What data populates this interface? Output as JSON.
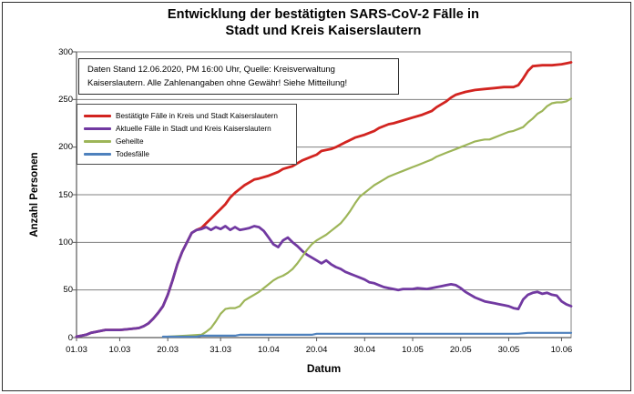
{
  "title": {
    "line1": "Entwicklung der bestätigten SARS-CoV-2 Fälle in",
    "line2": "Stadt und Kreis Kaiserslautern"
  },
  "annotation": {
    "line1": "Daten Stand 12.06.2020, PM 16:00 Uhr, Quelle: Kreisverwaltung",
    "line2": "Kaiserslautern. Alle Zahlenangaben ohne Gewähr! Siehe Mitteilung!"
  },
  "chart_data": {
    "type": "line",
    "title": "Entwicklung der bestätigten SARS-CoV-2 Fälle in Stadt und Kreis Kaiserslautern",
    "xlabel": "Datum",
    "ylabel": "Anzahl Personen",
    "ylim": [
      0,
      300
    ],
    "y_ticks": [
      0,
      50,
      100,
      150,
      200,
      250,
      300
    ],
    "x_range_days": [
      0,
      103
    ],
    "x_ticks": [
      {
        "label": "01.03",
        "day": 0
      },
      {
        "label": "10.03",
        "day": 9
      },
      {
        "label": "20.03",
        "day": 19
      },
      {
        "label": "31.03",
        "day": 30
      },
      {
        "label": "10.04",
        "day": 40
      },
      {
        "label": "20.04",
        "day": 50
      },
      {
        "label": "30.04",
        "day": 60
      },
      {
        "label": "10.05",
        "day": 70
      },
      {
        "label": "20.05",
        "day": 80
      },
      {
        "label": "30.05",
        "day": 90
      },
      {
        "label": "10.06",
        "day": 101
      }
    ],
    "grid": "horizontal",
    "legend_position": "top-left",
    "colors": {
      "grid": "#808080",
      "axis": "#595959"
    },
    "series": [
      {
        "name": "Bestätigte Fälle in Kreis und Stadt Kaiserslautern",
        "color": "#D22420",
        "width": 2.8,
        "points": [
          [
            0,
            1
          ],
          [
            2,
            3
          ],
          [
            3,
            5
          ],
          [
            4,
            6
          ],
          [
            6,
            8
          ],
          [
            9,
            8
          ],
          [
            11,
            9
          ],
          [
            13,
            10
          ],
          [
            14,
            12
          ],
          [
            15,
            15
          ],
          [
            16,
            20
          ],
          [
            17,
            26
          ],
          [
            18,
            33
          ],
          [
            19,
            45
          ],
          [
            20,
            60
          ],
          [
            21,
            77
          ],
          [
            22,
            90
          ],
          [
            23,
            100
          ],
          [
            24,
            110
          ],
          [
            25,
            113
          ],
          [
            26,
            115
          ],
          [
            27,
            120
          ],
          [
            28,
            125
          ],
          [
            29,
            130
          ],
          [
            30,
            135
          ],
          [
            31,
            140
          ],
          [
            32,
            147
          ],
          [
            33,
            152
          ],
          [
            34,
            156
          ],
          [
            35,
            160
          ],
          [
            36,
            163
          ],
          [
            37,
            166
          ],
          [
            38,
            167
          ],
          [
            40,
            170
          ],
          [
            42,
            174
          ],
          [
            43,
            177
          ],
          [
            45,
            180
          ],
          [
            47,
            186
          ],
          [
            49,
            190
          ],
          [
            50,
            192
          ],
          [
            51,
            196
          ],
          [
            53,
            198
          ],
          [
            54,
            200
          ],
          [
            56,
            205
          ],
          [
            58,
            210
          ],
          [
            60,
            213
          ],
          [
            62,
            217
          ],
          [
            63,
            220
          ],
          [
            65,
            224
          ],
          [
            66,
            225
          ],
          [
            68,
            228
          ],
          [
            70,
            231
          ],
          [
            72,
            234
          ],
          [
            74,
            238
          ],
          [
            75,
            242
          ],
          [
            77,
            248
          ],
          [
            78,
            252
          ],
          [
            79,
            255
          ],
          [
            81,
            258
          ],
          [
            83,
            260
          ],
          [
            85,
            261
          ],
          [
            87,
            262
          ],
          [
            89,
            263
          ],
          [
            91,
            263
          ],
          [
            92,
            265
          ],
          [
            93,
            272
          ],
          [
            94,
            280
          ],
          [
            95,
            285
          ],
          [
            97,
            286
          ],
          [
            99,
            286
          ],
          [
            101,
            287
          ],
          [
            102,
            288
          ],
          [
            103,
            289
          ]
        ]
      },
      {
        "name": "Aktuelle Fälle in Stadt und Kreis Kaiserslautern",
        "color": "#7139A1",
        "width": 2.8,
        "points": [
          [
            0,
            1
          ],
          [
            2,
            3
          ],
          [
            3,
            5
          ],
          [
            4,
            6
          ],
          [
            6,
            8
          ],
          [
            9,
            8
          ],
          [
            11,
            9
          ],
          [
            13,
            10
          ],
          [
            14,
            12
          ],
          [
            15,
            15
          ],
          [
            16,
            20
          ],
          [
            17,
            26
          ],
          [
            18,
            33
          ],
          [
            19,
            45
          ],
          [
            20,
            60
          ],
          [
            21,
            77
          ],
          [
            22,
            90
          ],
          [
            23,
            100
          ],
          [
            24,
            110
          ],
          [
            25,
            113
          ],
          [
            26,
            114
          ],
          [
            27,
            116
          ],
          [
            28,
            113
          ],
          [
            29,
            116
          ],
          [
            30,
            114
          ],
          [
            31,
            117
          ],
          [
            32,
            113
          ],
          [
            33,
            116
          ],
          [
            34,
            113
          ],
          [
            35,
            114
          ],
          [
            36,
            115
          ],
          [
            37,
            117
          ],
          [
            38,
            116
          ],
          [
            39,
            112
          ],
          [
            40,
            105
          ],
          [
            41,
            98
          ],
          [
            42,
            95
          ],
          [
            43,
            102
          ],
          [
            44,
            105
          ],
          [
            45,
            100
          ],
          [
            46,
            96
          ],
          [
            47,
            91
          ],
          [
            48,
            87
          ],
          [
            49,
            84
          ],
          [
            50,
            81
          ],
          [
            51,
            78
          ],
          [
            52,
            81
          ],
          [
            53,
            77
          ],
          [
            54,
            74
          ],
          [
            55,
            72
          ],
          [
            56,
            69
          ],
          [
            57,
            67
          ],
          [
            58,
            65
          ],
          [
            59,
            63
          ],
          [
            60,
            61
          ],
          [
            61,
            58
          ],
          [
            62,
            57
          ],
          [
            63,
            55
          ],
          [
            64,
            53
          ],
          [
            65,
            52
          ],
          [
            66,
            51
          ],
          [
            67,
            50
          ],
          [
            68,
            51
          ],
          [
            70,
            51
          ],
          [
            71,
            52
          ],
          [
            73,
            51
          ],
          [
            75,
            53
          ],
          [
            76,
            54
          ],
          [
            77,
            55
          ],
          [
            78,
            56
          ],
          [
            79,
            55
          ],
          [
            80,
            52
          ],
          [
            81,
            48
          ],
          [
            82,
            45
          ],
          [
            83,
            42
          ],
          [
            84,
            40
          ],
          [
            85,
            38
          ],
          [
            86,
            37
          ],
          [
            87,
            36
          ],
          [
            88,
            35
          ],
          [
            89,
            34
          ],
          [
            90,
            33
          ],
          [
            91,
            31
          ],
          [
            92,
            30
          ],
          [
            93,
            40
          ],
          [
            94,
            45
          ],
          [
            95,
            47
          ],
          [
            96,
            48
          ],
          [
            97,
            46
          ],
          [
            98,
            47
          ],
          [
            99,
            45
          ],
          [
            100,
            44
          ],
          [
            101,
            38
          ],
          [
            102,
            35
          ],
          [
            103,
            33
          ]
        ]
      },
      {
        "name": "Geheilte",
        "color": "#9DB558",
        "width": 2.2,
        "points": [
          [
            19,
            1
          ],
          [
            23,
            2
          ],
          [
            26,
            3
          ],
          [
            27,
            6
          ],
          [
            28,
            10
          ],
          [
            29,
            17
          ],
          [
            30,
            25
          ],
          [
            31,
            30
          ],
          [
            32,
            31
          ],
          [
            33,
            31
          ],
          [
            34,
            33
          ],
          [
            35,
            39
          ],
          [
            36,
            42
          ],
          [
            37,
            45
          ],
          [
            38,
            48
          ],
          [
            39,
            52
          ],
          [
            40,
            56
          ],
          [
            41,
            60
          ],
          [
            42,
            63
          ],
          [
            43,
            65
          ],
          [
            44,
            68
          ],
          [
            45,
            72
          ],
          [
            46,
            78
          ],
          [
            47,
            85
          ],
          [
            48,
            92
          ],
          [
            49,
            98
          ],
          [
            50,
            102
          ],
          [
            51,
            105
          ],
          [
            52,
            108
          ],
          [
            53,
            112
          ],
          [
            54,
            116
          ],
          [
            55,
            120
          ],
          [
            56,
            126
          ],
          [
            57,
            133
          ],
          [
            58,
            141
          ],
          [
            59,
            148
          ],
          [
            60,
            152
          ],
          [
            61,
            156
          ],
          [
            62,
            160
          ],
          [
            63,
            163
          ],
          [
            64,
            166
          ],
          [
            65,
            169
          ],
          [
            66,
            171
          ],
          [
            67,
            173
          ],
          [
            68,
            175
          ],
          [
            69,
            177
          ],
          [
            70,
            179
          ],
          [
            71,
            181
          ],
          [
            72,
            183
          ],
          [
            73,
            185
          ],
          [
            74,
            187
          ],
          [
            75,
            190
          ],
          [
            76,
            192
          ],
          [
            77,
            194
          ],
          [
            78,
            196
          ],
          [
            79,
            198
          ],
          [
            80,
            200
          ],
          [
            81,
            202
          ],
          [
            82,
            204
          ],
          [
            83,
            206
          ],
          [
            84,
            207
          ],
          [
            85,
            208
          ],
          [
            86,
            208
          ],
          [
            87,
            210
          ],
          [
            88,
            212
          ],
          [
            89,
            214
          ],
          [
            90,
            216
          ],
          [
            91,
            217
          ],
          [
            92,
            219
          ],
          [
            93,
            221
          ],
          [
            94,
            226
          ],
          [
            95,
            230
          ],
          [
            96,
            235
          ],
          [
            97,
            238
          ],
          [
            98,
            243
          ],
          [
            99,
            246
          ],
          [
            100,
            247
          ],
          [
            101,
            247
          ],
          [
            102,
            248
          ],
          [
            103,
            251
          ]
        ]
      },
      {
        "name": "Todesfälle",
        "color": "#4E81BD",
        "width": 2.2,
        "points": [
          [
            18,
            1
          ],
          [
            25,
            1
          ],
          [
            26,
            2
          ],
          [
            33,
            2
          ],
          [
            34,
            3
          ],
          [
            49,
            3
          ],
          [
            50,
            4
          ],
          [
            92,
            4
          ],
          [
            94,
            5
          ],
          [
            103,
            5
          ]
        ]
      }
    ]
  }
}
